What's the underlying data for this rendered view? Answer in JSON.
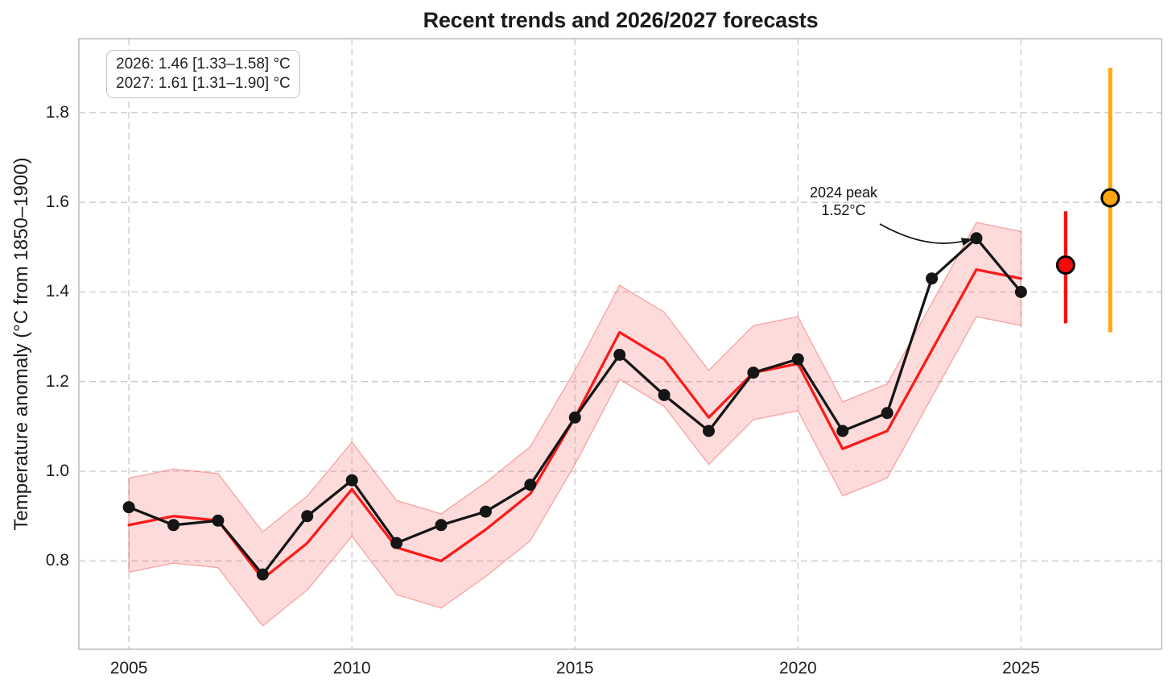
{
  "title": "Recent trends and 2026/2027 forecasts",
  "forecast_box": {
    "line1": "2026: 1.46 [1.33–1.58] °C",
    "line2": "2027: 1.61 [1.31–1.90] °C"
  },
  "peak_annotation": {
    "line1": "2024 peak",
    "line2": "1.52°C"
  },
  "colors": {
    "background": "#ffffff",
    "grid": "#cdcdcd",
    "frame": "#bfbfbf",
    "observations": "#151515",
    "hindcast": "#fb1b1b",
    "band_fill": "rgba(250,110,110,0.25)",
    "band_edge": "rgba(240,100,100,0.5)",
    "forecast_2026": "#f50a0a",
    "forecast_2027": "#ffa50f",
    "text": "#1b1b1b"
  },
  "chart_data": {
    "type": "line",
    "title": "Recent trends and 2026/2027 forecasts",
    "xlabel": "",
    "ylabel": "Temperature anomaly (°C from 1850–1900)",
    "xlim": [
      2003.88,
      2028.15
    ],
    "ylim": [
      0.603,
      1.965
    ],
    "xticks": [
      2005,
      2010,
      2015,
      2020,
      2025
    ],
    "yticks": [
      0.8,
      1.0,
      1.2,
      1.4,
      1.6,
      1.8
    ],
    "grid": {
      "visible": true,
      "style": "dashed",
      "axes": "both"
    },
    "legend": "none",
    "x": [
      2005,
      2006,
      2007,
      2008,
      2009,
      2010,
      2011,
      2012,
      2013,
      2014,
      2015,
      2016,
      2017,
      2018,
      2019,
      2020,
      2021,
      2022,
      2023,
      2024,
      2025
    ],
    "series": [
      {
        "name": "observations",
        "style": "line+markers",
        "color": "#151515",
        "values": [
          0.92,
          0.88,
          0.89,
          0.77,
          0.9,
          0.98,
          0.84,
          0.88,
          0.91,
          0.97,
          1.12,
          1.26,
          1.17,
          1.09,
          1.22,
          1.25,
          1.09,
          1.13,
          1.43,
          1.52,
          1.4
        ]
      },
      {
        "name": "hindcast",
        "style": "line",
        "color": "#fb1b1b",
        "values": [
          0.88,
          0.9,
          0.89,
          0.76,
          0.84,
          0.96,
          0.83,
          0.8,
          0.87,
          0.95,
          1.12,
          1.31,
          1.25,
          1.12,
          1.22,
          1.24,
          1.05,
          1.09,
          1.27,
          1.45,
          1.43
        ]
      }
    ],
    "uncertainty_band": {
      "series": "hindcast",
      "upper": [
        0.985,
        1.005,
        0.995,
        0.865,
        0.945,
        1.065,
        0.935,
        0.905,
        0.975,
        1.055,
        1.225,
        1.415,
        1.355,
        1.225,
        1.325,
        1.345,
        1.155,
        1.195,
        1.375,
        1.555,
        1.535
      ],
      "lower": [
        0.775,
        0.795,
        0.785,
        0.655,
        0.735,
        0.855,
        0.725,
        0.695,
        0.765,
        0.845,
        1.015,
        1.205,
        1.145,
        1.015,
        1.115,
        1.135,
        0.945,
        0.985,
        1.165,
        1.345,
        1.325
      ]
    },
    "forecasts": [
      {
        "year": 2026,
        "value": 1.46,
        "lower": 1.33,
        "upper": 1.58,
        "color": "#f50a0a"
      },
      {
        "year": 2027,
        "value": 1.61,
        "lower": 1.31,
        "upper": 1.9,
        "color": "#ffa50f"
      }
    ],
    "annotation": {
      "text": "2024 peak 1.52°C",
      "target_year": 2024,
      "target_value": 1.52
    }
  }
}
